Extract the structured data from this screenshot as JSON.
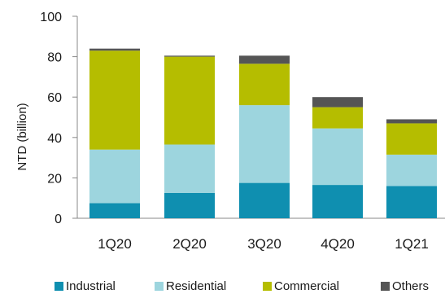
{
  "chart_data": {
    "type": "bar",
    "stacked": true,
    "ylabel": "NTD (billion)",
    "ylim": [
      0,
      100
    ],
    "yticks": [
      "0",
      "20",
      "40",
      "60",
      "80",
      "100"
    ],
    "categories": [
      "1Q20",
      "2Q20",
      "3Q20",
      "4Q20",
      "1Q21"
    ],
    "series": [
      {
        "name": "Industrial",
        "color": "#0f8fb0",
        "values": [
          7.5,
          12.5,
          17.5,
          16.5,
          16.0
        ]
      },
      {
        "name": "Residential",
        "color": "#9dd5de",
        "values": [
          26.5,
          24.0,
          38.5,
          28.0,
          15.5
        ]
      },
      {
        "name": "Commercial",
        "color": "#b5bd00",
        "values": [
          49.0,
          43.5,
          20.5,
          10.5,
          15.5
        ]
      },
      {
        "name": "Others",
        "color": "#555555",
        "values": [
          1.0,
          0.5,
          4.0,
          5.0,
          2.0
        ]
      }
    ],
    "grid": false,
    "legend": "bottom"
  }
}
